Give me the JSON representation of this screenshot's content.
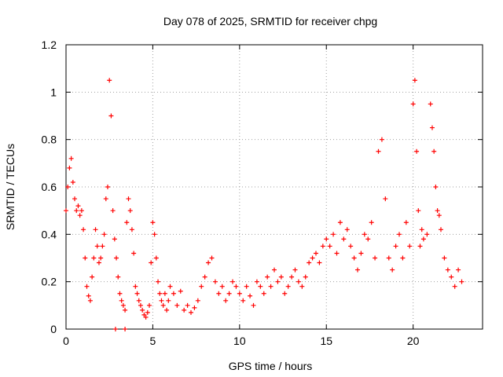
{
  "chart_data": {
    "type": "scatter",
    "title": "Day 078 of 2025, SRMTID for receiver chpg",
    "xlabel": "GPS time / hours",
    "ylabel": "SRMTID / TECUs",
    "xlim": [
      0,
      24
    ],
    "ylim": [
      0,
      1.2
    ],
    "x_ticks": [
      0,
      5,
      10,
      15,
      20
    ],
    "y_ticks": [
      0,
      0.2,
      0.4,
      0.6,
      0.8,
      1,
      1.2
    ],
    "x_tick_labels": [
      "0",
      "5",
      "10",
      "15",
      "20"
    ],
    "y_tick_labels": [
      "0",
      "0.2",
      "0.4",
      "0.6",
      "0.8",
      "1",
      "1.2"
    ],
    "grid": true,
    "marker": "+",
    "series": [
      {
        "name": "SRMTID",
        "color": "#ff0000",
        "x": [
          0.0,
          0.1,
          0.2,
          0.3,
          0.4,
          0.5,
          0.6,
          0.7,
          0.8,
          0.9,
          1.0,
          1.1,
          1.2,
          1.3,
          1.4,
          1.5,
          1.6,
          1.7,
          1.8,
          1.9,
          2.0,
          2.1,
          2.2,
          2.3,
          2.4,
          2.5,
          2.6,
          2.7,
          2.8,
          2.9,
          3.0,
          3.1,
          3.2,
          3.3,
          3.4,
          3.5,
          3.6,
          3.7,
          3.8,
          3.9,
          4.0,
          4.1,
          4.2,
          4.3,
          4.4,
          4.5,
          4.6,
          4.7,
          4.8,
          4.9,
          5.0,
          5.1,
          5.2,
          5.3,
          5.4,
          5.5,
          5.6,
          5.7,
          5.8,
          5.9,
          6.0,
          6.2,
          6.4,
          6.6,
          6.8,
          7.0,
          7.2,
          7.4,
          7.6,
          7.8,
          8.0,
          8.2,
          8.4,
          8.6,
          8.8,
          9.0,
          9.2,
          9.4,
          9.6,
          9.8,
          10.0,
          10.2,
          10.4,
          10.6,
          10.8,
          11.0,
          11.2,
          11.4,
          11.6,
          11.8,
          12.0,
          12.2,
          12.4,
          12.6,
          12.8,
          13.0,
          13.2,
          13.4,
          13.6,
          13.8,
          14.0,
          14.2,
          14.4,
          14.6,
          14.8,
          15.0,
          15.2,
          15.4,
          15.6,
          15.8,
          16.0,
          16.2,
          16.4,
          16.6,
          16.8,
          17.0,
          17.2,
          17.4,
          17.6,
          17.8,
          18.0,
          18.2,
          18.4,
          18.6,
          18.8,
          19.0,
          19.2,
          19.4,
          19.6,
          19.8,
          20.0,
          20.1,
          20.2,
          20.3,
          20.4,
          20.5,
          20.6,
          20.8,
          21.0,
          21.1,
          21.2,
          21.3,
          21.4,
          21.5,
          21.6,
          21.8,
          22.0,
          22.2,
          22.4,
          22.6,
          22.8,
          2.85,
          3.4
        ],
        "y": [
          0.5,
          0.6,
          0.68,
          0.72,
          0.62,
          0.55,
          0.5,
          0.52,
          0.48,
          0.5,
          0.42,
          0.3,
          0.18,
          0.14,
          0.12,
          0.22,
          0.3,
          0.42,
          0.35,
          0.28,
          0.3,
          0.35,
          0.4,
          0.55,
          0.6,
          1.05,
          0.9,
          0.5,
          0.38,
          0.3,
          0.22,
          0.15,
          0.12,
          0.1,
          0.08,
          0.45,
          0.55,
          0.5,
          0.42,
          0.32,
          0.18,
          0.15,
          0.12,
          0.1,
          0.08,
          0.06,
          0.05,
          0.07,
          0.1,
          0.28,
          0.45,
          0.4,
          0.3,
          0.2,
          0.15,
          0.12,
          0.1,
          0.15,
          0.08,
          0.12,
          0.18,
          0.15,
          0.1,
          0.16,
          0.08,
          0.1,
          0.07,
          0.09,
          0.12,
          0.18,
          0.22,
          0.28,
          0.3,
          0.2,
          0.15,
          0.18,
          0.12,
          0.15,
          0.2,
          0.18,
          0.15,
          0.12,
          0.18,
          0.14,
          0.1,
          0.2,
          0.18,
          0.15,
          0.22,
          0.18,
          0.25,
          0.2,
          0.22,
          0.15,
          0.18,
          0.22,
          0.25,
          0.2,
          0.18,
          0.22,
          0.28,
          0.3,
          0.32,
          0.28,
          0.35,
          0.38,
          0.35,
          0.4,
          0.32,
          0.45,
          0.38,
          0.42,
          0.35,
          0.3,
          0.25,
          0.32,
          0.4,
          0.38,
          0.45,
          0.3,
          0.75,
          0.8,
          0.55,
          0.3,
          0.25,
          0.35,
          0.4,
          0.3,
          0.45,
          0.35,
          0.95,
          1.05,
          0.75,
          0.5,
          0.35,
          0.42,
          0.38,
          0.4,
          0.95,
          0.85,
          0.75,
          0.6,
          0.5,
          0.48,
          0.42,
          0.3,
          0.25,
          0.22,
          0.18,
          0.25,
          0.2,
          0.0,
          0.0
        ]
      }
    ]
  }
}
